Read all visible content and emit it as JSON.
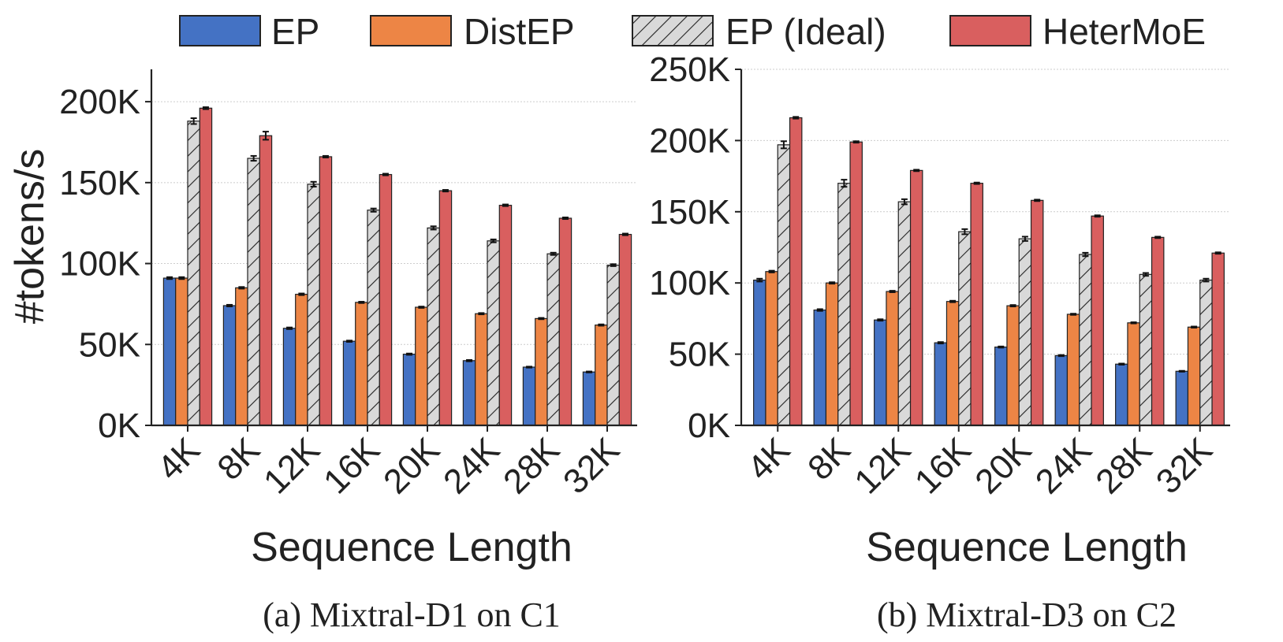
{
  "legend": {
    "items": [
      {
        "label": "EP",
        "color": "#4472C4",
        "hatch": false
      },
      {
        "label": "DistEP",
        "color": "#ED8545",
        "hatch": false
      },
      {
        "label": "EP (Ideal)",
        "color": "#D9D9D9",
        "hatch": true
      },
      {
        "label": "HeterMoE",
        "color": "#D95F5F",
        "hatch": false
      }
    ]
  },
  "chart_data": [
    {
      "type": "bar",
      "caption": "(a) Mixtral-D1 on C1",
      "xlabel": "Sequence Length",
      "ylabel": "#tokens/s",
      "ylim": [
        0,
        220000
      ],
      "yticks": [
        0,
        50000,
        100000,
        150000,
        200000
      ],
      "ytick_labels": [
        "0K",
        "50K",
        "100K",
        "150K",
        "200K"
      ],
      "grid": "horizontal",
      "categories": [
        "4K",
        "8K",
        "12K",
        "16K",
        "20K",
        "24K",
        "28K",
        "32K"
      ],
      "series": [
        {
          "name": "EP",
          "values": [
            91000,
            74000,
            60000,
            52000,
            44000,
            40000,
            36000,
            33000
          ],
          "errors": [
            600,
            500,
            500,
            400,
            400,
            400,
            300,
            300
          ]
        },
        {
          "name": "DistEP",
          "values": [
            91000,
            85000,
            81000,
            76000,
            73000,
            69000,
            66000,
            62000
          ],
          "errors": [
            600,
            500,
            500,
            400,
            400,
            400,
            400,
            400
          ]
        },
        {
          "name": "EP (Ideal)",
          "values": [
            188000,
            165000,
            149000,
            133000,
            122000,
            114000,
            106000,
            99000
          ],
          "errors": [
            1800,
            1500,
            1500,
            1000,
            1000,
            900,
            700,
            600
          ]
        },
        {
          "name": "HeterMoE",
          "values": [
            196000,
            179000,
            166000,
            155000,
            145000,
            136000,
            128000,
            118000
          ],
          "errors": [
            600,
            2500,
            500,
            500,
            500,
            500,
            500,
            500
          ]
        }
      ]
    },
    {
      "type": "bar",
      "caption": "(b) Mixtral-D3 on C2",
      "xlabel": "Sequence Length",
      "ylabel": "",
      "ylim": [
        0,
        250000
      ],
      "yticks": [
        0,
        50000,
        100000,
        150000,
        200000,
        250000
      ],
      "ytick_labels": [
        "0K",
        "50K",
        "100K",
        "150K",
        "200K",
        "250K"
      ],
      "grid": "horizontal",
      "categories": [
        "4K",
        "8K",
        "12K",
        "16K",
        "20K",
        "24K",
        "28K",
        "32K"
      ],
      "series": [
        {
          "name": "EP",
          "values": [
            102000,
            81000,
            74000,
            58000,
            55000,
            49000,
            43000,
            38000
          ],
          "errors": [
            1000,
            600,
            500,
            500,
            400,
            400,
            400,
            300
          ]
        },
        {
          "name": "DistEP",
          "values": [
            108000,
            100000,
            94000,
            87000,
            84000,
            78000,
            72000,
            69000
          ],
          "errors": [
            600,
            500,
            500,
            500,
            500,
            400,
            400,
            400
          ]
        },
        {
          "name": "EP (Ideal)",
          "values": [
            197000,
            170000,
            157000,
            136000,
            131000,
            120000,
            106000,
            102000
          ],
          "errors": [
            2500,
            2500,
            1800,
            1800,
            1500,
            1200,
            1000,
            1000
          ]
        },
        {
          "name": "HeterMoE",
          "values": [
            216000,
            199000,
            179000,
            170000,
            158000,
            147000,
            132000,
            121000
          ],
          "errors": [
            600,
            500,
            500,
            500,
            500,
            500,
            500,
            500
          ]
        }
      ]
    }
  ]
}
